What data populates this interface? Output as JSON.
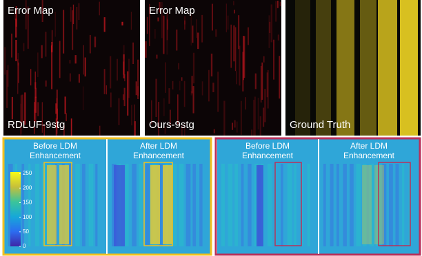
{
  "top_row": [
    {
      "title": "Error Map",
      "caption": "RDLUF-9stg"
    },
    {
      "title": "Error Map",
      "caption": "Ours-9stg"
    },
    {
      "caption": "Ground Truth"
    }
  ],
  "bottom_groups": [
    {
      "panels": [
        {
          "label": [
            "Before LDM",
            "Enhancement"
          ]
        },
        {
          "label": [
            "After LDM",
            "Enhancement"
          ]
        }
      ]
    },
    {
      "panels": [
        {
          "label": [
            "Before LDM",
            "Enhancement"
          ]
        },
        {
          "label": [
            "After LDM",
            "Enhancement"
          ]
        }
      ]
    }
  ],
  "colorbar": {
    "lim": [
      0,
      255
    ],
    "ticks": [
      0,
      50,
      100,
      150,
      200,
      250
    ]
  }
}
